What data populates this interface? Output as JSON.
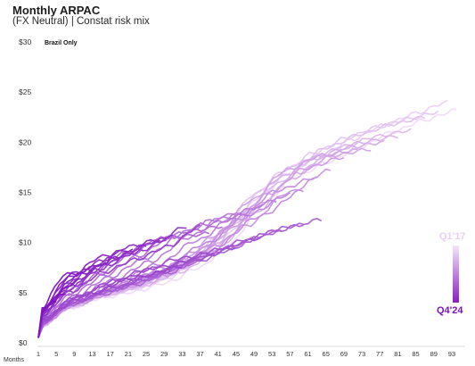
{
  "header": {
    "title": "Monthly ARPAC",
    "subtitle": "(FX Neutral) | Constat risk mix"
  },
  "note": "Brazil Only",
  "legend": {
    "top_label": "Q1'17",
    "bottom_label": "Q4'24"
  },
  "colors": {
    "oldest": "#f1dcf7",
    "newest": "#7d12bd"
  },
  "chart_data": {
    "type": "line",
    "xlabel": "Months",
    "ylabel": "",
    "x_ticks": [
      1,
      5,
      9,
      13,
      17,
      21,
      25,
      29,
      33,
      37,
      41,
      45,
      49,
      53,
      57,
      61,
      65,
      69,
      73,
      77,
      81,
      85,
      89,
      93
    ],
    "y_ticks": [
      "$0",
      "$5",
      "$10",
      "$15",
      "$20",
      "$25",
      "$30"
    ],
    "xlim": [
      1,
      95
    ],
    "ylim": [
      0,
      30
    ],
    "grid": false,
    "series_order": "oldest cohort (Q1'17, lightest) to newest cohort (Q4'24, darkest)",
    "series": [
      {
        "months": 94,
        "v": [
          1.5,
          3.5,
          4.5,
          5.1,
          6.0,
          7.5,
          10.0,
          14.0,
          16.5,
          18.0,
          19.5,
          21.0,
          22.2,
          23.2
        ]
      },
      {
        "months": 92,
        "v": [
          1.5,
          3.5,
          4.6,
          5.3,
          6.3,
          8.0,
          10.8,
          14.5,
          17.0,
          18.8,
          20.3,
          21.7,
          22.9,
          24.0
        ]
      },
      {
        "months": 90,
        "v": [
          1.5,
          3.6,
          4.7,
          5.4,
          6.5,
          8.3,
          11.2,
          14.8,
          17.2,
          19.0,
          20.4,
          21.5,
          22.3,
          23.0
        ]
      },
      {
        "months": 87,
        "v": [
          1.6,
          3.6,
          4.7,
          5.5,
          6.7,
          8.7,
          11.8,
          15.4,
          17.8,
          19.5,
          20.8,
          21.8,
          22.5
        ]
      },
      {
        "months": 84,
        "v": [
          1.6,
          3.7,
          4.8,
          5.6,
          6.9,
          9.0,
          12.3,
          15.8,
          18.1,
          19.6,
          20.6,
          21.2
        ]
      },
      {
        "months": 81,
        "v": [
          1.6,
          3.7,
          4.9,
          5.8,
          7.1,
          9.4,
          12.8,
          16.3,
          18.6,
          20.0,
          20.6
        ]
      },
      {
        "months": 78,
        "v": [
          1.6,
          3.8,
          5.0,
          5.9,
          7.4,
          9.8,
          13.2,
          16.5,
          18.5,
          19.5,
          20.0
        ]
      },
      {
        "months": 75,
        "v": [
          1.7,
          3.8,
          5.1,
          6.1,
          7.7,
          10.2,
          13.8,
          16.9,
          18.7,
          19.3
        ]
      },
      {
        "months": 72,
        "v": [
          1.7,
          3.9,
          5.2,
          6.3,
          8.0,
          10.7,
          14.2,
          17.2,
          18.7,
          19.2
        ]
      },
      {
        "months": 69,
        "v": [
          1.7,
          4.0,
          5.3,
          6.5,
          8.4,
          11.3,
          14.8,
          17.4,
          18.5
        ]
      },
      {
        "months": 66,
        "v": [
          1.8,
          4.0,
          5.4,
          6.7,
          8.8,
          11.7,
          15.0,
          17.2
        ]
      },
      {
        "months": 63,
        "v": [
          1.8,
          4.1,
          5.6,
          7.0,
          9.2,
          12.2,
          15.2,
          16.5
        ]
      },
      {
        "months": 60,
        "v": [
          1.8,
          4.2,
          5.8,
          7.3,
          9.6,
          12.6,
          15.2
        ]
      },
      {
        "months": 57,
        "v": [
          1.9,
          4.3,
          5.9,
          7.5,
          9.9,
          12.8,
          14.8
        ]
      },
      {
        "months": 54,
        "v": [
          1.9,
          4.4,
          6.1,
          7.8,
          10.2,
          12.8,
          14.2
        ]
      },
      {
        "months": 51,
        "v": [
          2.0,
          4.5,
          6.3,
          8.1,
          10.5,
          12.7,
          13.6
        ]
      },
      {
        "months": 48,
        "v": [
          2.0,
          4.6,
          6.5,
          8.4,
          10.6,
          12.3,
          12.8
        ]
      },
      {
        "months": 45,
        "v": [
          2.1,
          4.8,
          6.7,
          8.6,
          10.5,
          11.8,
          12.3
        ]
      },
      {
        "months": 42,
        "v": [
          2.2,
          4.9,
          6.9,
          8.8,
          10.4,
          11.2,
          11.6
        ]
      },
      {
        "months": 39,
        "v": [
          2.3,
          5.1,
          7.1,
          8.9,
          10.1,
          10.6,
          10.9
        ]
      },
      {
        "months": 64,
        "v": [
          1.7,
          3.8,
          4.8,
          5.7,
          6.8,
          8.0,
          9.2,
          10.5,
          11.6,
          12.3
        ]
      },
      {
        "months": 60,
        "v": [
          1.8,
          3.9,
          5.0,
          6.0,
          7.2,
          8.5,
          9.8,
          11.0,
          11.8
        ]
      },
      {
        "months": 55,
        "v": [
          1.8,
          4.0,
          5.2,
          6.3,
          7.6,
          9.0,
          10.3,
          11.3
        ]
      },
      {
        "months": 50,
        "v": [
          1.9,
          4.1,
          5.4,
          6.6,
          8.0,
          9.4,
          10.4
        ]
      },
      {
        "months": 45,
        "v": [
          1.9,
          4.2,
          5.6,
          6.9,
          8.3,
          9.5
        ]
      },
      {
        "months": 40,
        "v": [
          2.0,
          4.4,
          5.9,
          7.2,
          8.4,
          9.0
        ]
      },
      {
        "months": 36,
        "v": [
          2.1,
          4.6,
          6.2,
          7.5,
          8.3
        ]
      },
      {
        "months": 33,
        "v": [
          2.2,
          4.8,
          6.5,
          7.6
        ]
      },
      {
        "months": 37,
        "v": [
          2.3,
          5.1,
          7.0,
          8.3,
          9.6,
          11.6
        ]
      },
      {
        "months": 34,
        "v": [
          2.4,
          5.3,
          7.3,
          8.8,
          10.2,
          11.6
        ]
      },
      {
        "months": 31,
        "v": [
          2.5,
          5.6,
          7.7,
          9.2,
          10.6
        ]
      },
      {
        "months": 28,
        "v": [
          2.6,
          5.9,
          8.1,
          9.6,
          10.3
        ]
      },
      {
        "months": 25,
        "v": [
          2.7,
          6.2,
          8.4,
          9.6
        ]
      },
      {
        "months": 22,
        "v": [
          2.8,
          6.5,
          8.6,
          9.3
        ]
      },
      {
        "months": 19,
        "v": [
          2.9,
          6.8,
          8.5
        ]
      },
      {
        "months": 16,
        "v": [
          3.0,
          6.9,
          7.9
        ]
      },
      {
        "months": 13,
        "v": [
          3.1,
          6.8,
          7.3
        ]
      },
      {
        "months": 10,
        "v": [
          3.2,
          6.2
        ]
      },
      {
        "months": 7,
        "v": [
          3.3,
          5.0
        ]
      },
      {
        "months": 5,
        "v": [
          3.0,
          4.2
        ]
      }
    ]
  }
}
